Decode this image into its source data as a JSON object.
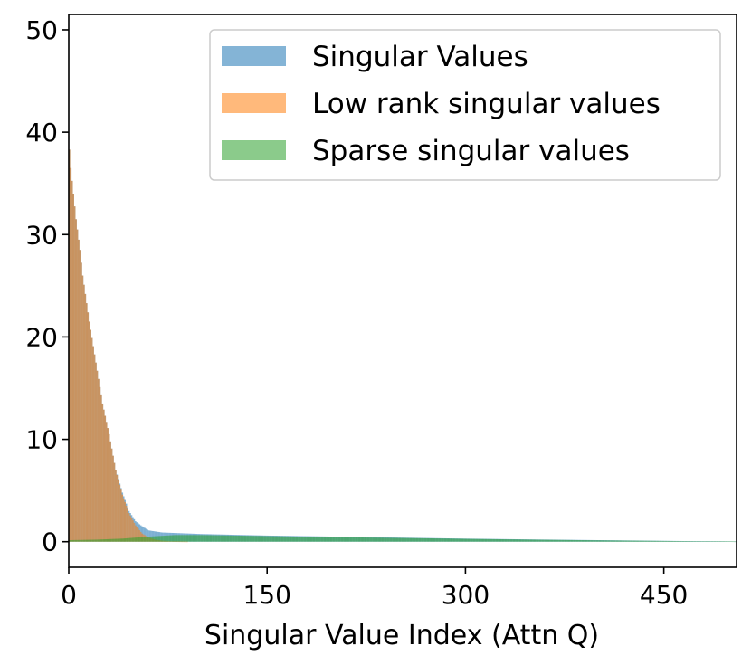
{
  "chart_data": {
    "type": "bar",
    "title": "",
    "xlabel": "Singular Value Index (Attn Q)",
    "ylabel": "",
    "xlim": [
      0,
      505
    ],
    "ylim": [
      -2.5,
      51.5
    ],
    "x_ticks": [
      0,
      150,
      300,
      450
    ],
    "y_ticks": [
      0,
      10,
      20,
      30,
      40,
      50
    ],
    "grid": false,
    "legend_position": "top-right",
    "num_bins": 512,
    "series": [
      {
        "name": "Singular Values",
        "color": "#1f77b4",
        "opacity": 0.55,
        "profile_x": [
          0,
          1,
          3,
          5,
          8,
          10,
          15,
          20,
          25,
          30,
          35,
          40,
          45,
          50,
          55,
          60,
          70,
          80,
          100,
          150,
          200,
          250,
          300,
          350,
          400,
          450,
          500,
          511
        ],
        "profile_y": [
          38.3,
          36.5,
          34.0,
          31.5,
          28.5,
          26.0,
          21.5,
          17.5,
          13.5,
          10.5,
          7.0,
          4.8,
          3.0,
          2.0,
          1.5,
          1.1,
          0.9,
          0.85,
          0.75,
          0.6,
          0.5,
          0.4,
          0.3,
          0.22,
          0.15,
          0.08,
          0.02,
          0.0
        ]
      },
      {
        "name": "Low rank singular values",
        "color": "#ff7f0e",
        "opacity": 0.55,
        "profile_x": [
          0,
          1,
          3,
          5,
          8,
          10,
          15,
          20,
          25,
          30,
          35,
          40,
          45,
          50,
          55,
          60,
          65,
          70,
          80,
          90,
          511
        ],
        "profile_y": [
          38.3,
          36.5,
          34.0,
          31.5,
          28.5,
          26.0,
          21.5,
          17.5,
          13.5,
          10.5,
          7.0,
          4.6,
          2.8,
          1.6,
          0.8,
          0.4,
          0.2,
          0.1,
          0.02,
          0.0,
          0.0
        ]
      },
      {
        "name": "Sparse singular values",
        "color": "#2ca02c",
        "opacity": 0.55,
        "profile_x": [
          0,
          20,
          40,
          60,
          80,
          100,
          150,
          200,
          250,
          300,
          350,
          400,
          450,
          500,
          511
        ],
        "profile_y": [
          0.15,
          0.2,
          0.3,
          0.5,
          0.65,
          0.65,
          0.55,
          0.45,
          0.37,
          0.28,
          0.2,
          0.13,
          0.07,
          0.02,
          0.0
        ]
      }
    ]
  }
}
